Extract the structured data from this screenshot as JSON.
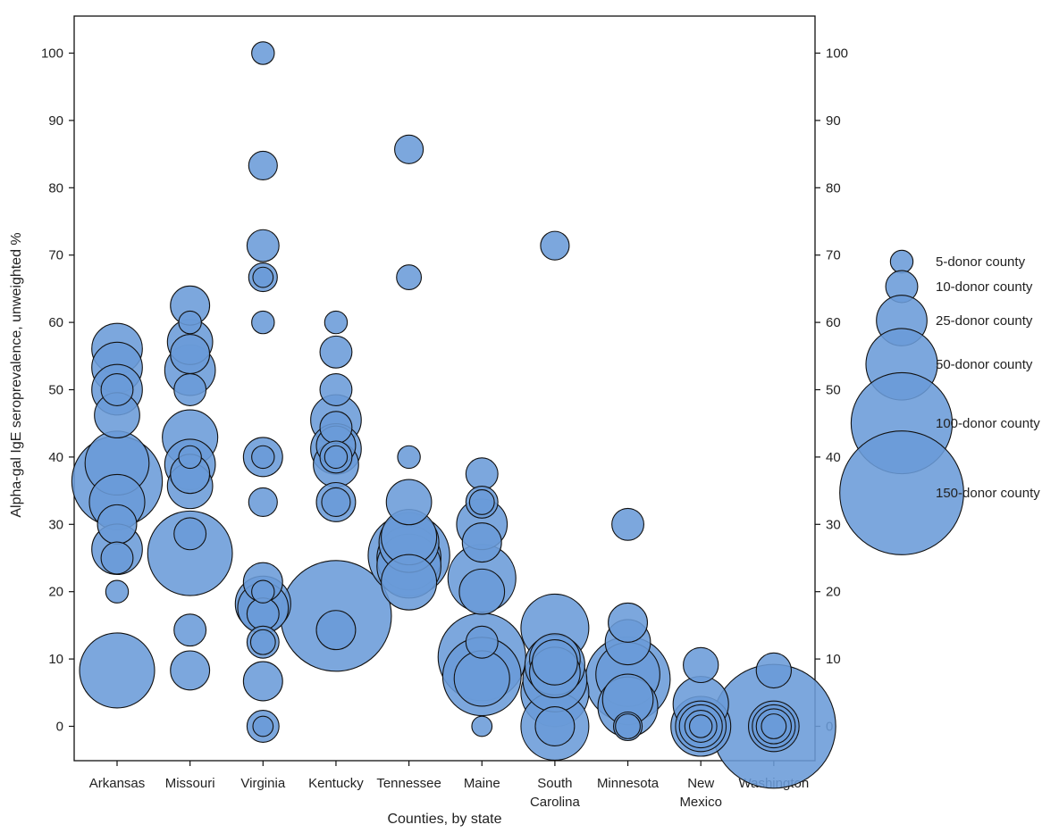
{
  "colors": {
    "bubble_fill": "#6a9bd8",
    "bubble_stroke": "#111111",
    "axis": "#111111"
  },
  "chart_data": {
    "type": "scatter",
    "title": "",
    "xlabel": "Counties, by state",
    "ylabel": "Alpha-gal IgE seroprevalence, unweighted %",
    "ylim": [
      -5,
      105
    ],
    "y_ticks": [
      0,
      10,
      20,
      30,
      40,
      50,
      60,
      70,
      80,
      90,
      100
    ],
    "y_tick_labels": [
      "0",
      "10",
      "20",
      "30",
      "40",
      "50",
      "60",
      "70",
      "80",
      "90",
      "100"
    ],
    "right_axis_mirrored": true,
    "grid": false,
    "legend_position": "right",
    "categories": [
      "Arkansas",
      "Missouri",
      "Virginia",
      "Kentucky",
      "Tennessee",
      "Maine",
      "South Carolina",
      "Minnesota",
      "New Mexico",
      "Washington"
    ],
    "category_labels": [
      [
        "Arkansas"
      ],
      [
        "Missouri"
      ],
      [
        "Virginia"
      ],
      [
        "Kentucky"
      ],
      [
        "Tennessee"
      ],
      [
        "Maine"
      ],
      [
        "South",
        "Carolina"
      ],
      [
        "Minnesota"
      ],
      [
        "New",
        "Mexico"
      ],
      [
        "Washington"
      ]
    ],
    "size_legend": [
      {
        "donors": 5,
        "label": "5-donor county"
      },
      {
        "donors": 10,
        "label": "10-donor county"
      },
      {
        "donors": 25,
        "label": "25-donor county"
      },
      {
        "donors": 50,
        "label": "50-donor county"
      },
      {
        "donors": 100,
        "label": "100-donor county"
      },
      {
        "donors": 150,
        "label": "150-donor county"
      }
    ],
    "points": [
      {
        "state": "Arkansas",
        "y": 56.1,
        "donors": 25
      },
      {
        "state": "Arkansas",
        "y": 53.3,
        "donors": 25
      },
      {
        "state": "Arkansas",
        "y": 50,
        "donors": 25
      },
      {
        "state": "Arkansas",
        "y": 50,
        "donors": 10
      },
      {
        "state": "Arkansas",
        "y": 46.2,
        "donors": 20
      },
      {
        "state": "Arkansas",
        "y": 39.1,
        "donors": 40
      },
      {
        "state": "Arkansas",
        "y": 36.4,
        "donors": 80
      },
      {
        "state": "Arkansas",
        "y": 33.3,
        "donors": 30
      },
      {
        "state": "Arkansas",
        "y": 30,
        "donors": 15
      },
      {
        "state": "Arkansas",
        "y": 26.3,
        "donors": 25
      },
      {
        "state": "Arkansas",
        "y": 25,
        "donors": 10
      },
      {
        "state": "Arkansas",
        "y": 20,
        "donors": 5
      },
      {
        "state": "Arkansas",
        "y": 8.3,
        "donors": 55
      },
      {
        "state": "Missouri",
        "y": 62.5,
        "donors": 15
      },
      {
        "state": "Missouri",
        "y": 60,
        "donors": 5
      },
      {
        "state": "Missouri",
        "y": 57.1,
        "donors": 20
      },
      {
        "state": "Missouri",
        "y": 55.3,
        "donors": 15
      },
      {
        "state": "Missouri",
        "y": 52.9,
        "donors": 25
      },
      {
        "state": "Missouri",
        "y": 50,
        "donors": 10
      },
      {
        "state": "Missouri",
        "y": 42.9,
        "donors": 30
      },
      {
        "state": "Missouri",
        "y": 40,
        "donors": 5
      },
      {
        "state": "Missouri",
        "y": 38.9,
        "donors": 25
      },
      {
        "state": "Missouri",
        "y": 37.5,
        "donors": 15
      },
      {
        "state": "Missouri",
        "y": 35.7,
        "donors": 20
      },
      {
        "state": "Missouri",
        "y": 28.6,
        "donors": 10
      },
      {
        "state": "Missouri",
        "y": 25.7,
        "donors": 70
      },
      {
        "state": "Missouri",
        "y": 14.3,
        "donors": 10
      },
      {
        "state": "Missouri",
        "y": 8.3,
        "donors": 15
      },
      {
        "state": "Virginia",
        "y": 100,
        "donors": 5
      },
      {
        "state": "Virginia",
        "y": 83.3,
        "donors": 8
      },
      {
        "state": "Virginia",
        "y": 71.4,
        "donors": 10
      },
      {
        "state": "Virginia",
        "y": 66.7,
        "donors": 8
      },
      {
        "state": "Virginia",
        "y": 66.7,
        "donors": 4
      },
      {
        "state": "Virginia",
        "y": 60,
        "donors": 5
      },
      {
        "state": "Virginia",
        "y": 40,
        "donors": 15
      },
      {
        "state": "Virginia",
        "y": 40,
        "donors": 5
      },
      {
        "state": "Virginia",
        "y": 33.3,
        "donors": 8
      },
      {
        "state": "Virginia",
        "y": 21.4,
        "donors": 15
      },
      {
        "state": "Virginia",
        "y": 20,
        "donors": 5
      },
      {
        "state": "Virginia",
        "y": 18.2,
        "donors": 30
      },
      {
        "state": "Virginia",
        "y": 17.6,
        "donors": 25
      },
      {
        "state": "Virginia",
        "y": 16.7,
        "donors": 10
      },
      {
        "state": "Virginia",
        "y": 12.5,
        "donors": 10
      },
      {
        "state": "Virginia",
        "y": 12.5,
        "donors": 6
      },
      {
        "state": "Virginia",
        "y": 6.7,
        "donors": 15
      },
      {
        "state": "Virginia",
        "y": 0,
        "donors": 10
      },
      {
        "state": "Virginia",
        "y": 0,
        "donors": 4
      },
      {
        "state": "Kentucky",
        "y": 60,
        "donors": 5
      },
      {
        "state": "Kentucky",
        "y": 55.6,
        "donors": 10
      },
      {
        "state": "Kentucky",
        "y": 50,
        "donors": 10
      },
      {
        "state": "Kentucky",
        "y": 45.5,
        "donors": 25
      },
      {
        "state": "Kentucky",
        "y": 44.4,
        "donors": 10
      },
      {
        "state": "Kentucky",
        "y": 41.7,
        "donors": 15
      },
      {
        "state": "Kentucky",
        "y": 41.2,
        "donors": 25
      },
      {
        "state": "Kentucky",
        "y": 40,
        "donors": 10
      },
      {
        "state": "Kentucky",
        "y": 40,
        "donors": 5
      },
      {
        "state": "Kentucky",
        "y": 38.9,
        "donors": 20
      },
      {
        "state": "Kentucky",
        "y": 33.3,
        "donors": 15
      },
      {
        "state": "Kentucky",
        "y": 33.3,
        "donors": 8
      },
      {
        "state": "Kentucky",
        "y": 16.4,
        "donors": 120
      },
      {
        "state": "Kentucky",
        "y": 14.3,
        "donors": 15
      },
      {
        "state": "Tennessee",
        "y": 85.7,
        "donors": 8
      },
      {
        "state": "Tennessee",
        "y": 66.7,
        "donors": 6
      },
      {
        "state": "Tennessee",
        "y": 40,
        "donors": 5
      },
      {
        "state": "Tennessee",
        "y": 33.3,
        "donors": 20
      },
      {
        "state": "Tennessee",
        "y": 28.1,
        "donors": 30
      },
      {
        "state": "Tennessee",
        "y": 27.3,
        "donors": 35
      },
      {
        "state": "Tennessee",
        "y": 25.4,
        "donors": 65
      },
      {
        "state": "Tennessee",
        "y": 25,
        "donors": 40
      },
      {
        "state": "Tennessee",
        "y": 23.8,
        "donors": 40
      },
      {
        "state": "Tennessee",
        "y": 21.4,
        "donors": 30
      },
      {
        "state": "Maine",
        "y": 37.5,
        "donors": 10
      },
      {
        "state": "Maine",
        "y": 33.3,
        "donors": 10
      },
      {
        "state": "Maine",
        "y": 33.3,
        "donors": 6
      },
      {
        "state": "Maine",
        "y": 30,
        "donors": 25
      },
      {
        "state": "Maine",
        "y": 27.3,
        "donors": 15
      },
      {
        "state": "Maine",
        "y": 22,
        "donors": 45
      },
      {
        "state": "Maine",
        "y": 20,
        "donors": 20
      },
      {
        "state": "Maine",
        "y": 12.5,
        "donors": 10
      },
      {
        "state": "Maine",
        "y": 10.3,
        "donors": 75
      },
      {
        "state": "Maine",
        "y": 7.4,
        "donors": 60
      },
      {
        "state": "Maine",
        "y": 7.1,
        "donors": 30
      },
      {
        "state": "Maine",
        "y": 0,
        "donors": 4
      },
      {
        "state": "South Carolina",
        "y": 71.4,
        "donors": 8
      },
      {
        "state": "South Carolina",
        "y": 14.6,
        "donors": 45
      },
      {
        "state": "South Carolina",
        "y": 10,
        "donors": 25
      },
      {
        "state": "South Carolina",
        "y": 9.5,
        "donors": 20
      },
      {
        "state": "South Carolina",
        "y": 9.1,
        "donors": 35
      },
      {
        "state": "South Carolina",
        "y": 8,
        "donors": 25
      },
      {
        "state": "South Carolina",
        "y": 6.9,
        "donors": 40
      },
      {
        "state": "South Carolina",
        "y": 5,
        "donors": 45
      },
      {
        "state": "South Carolina",
        "y": 0,
        "donors": 45
      },
      {
        "state": "South Carolina",
        "y": 0,
        "donors": 15
      },
      {
        "state": "Minnesota",
        "y": 30,
        "donors": 10
      },
      {
        "state": "Minnesota",
        "y": 15.4,
        "donors": 15
      },
      {
        "state": "Minnesota",
        "y": 12.5,
        "donors": 20
      },
      {
        "state": "Minnesota",
        "y": 7.7,
        "donors": 40
      },
      {
        "state": "Minnesota",
        "y": 7,
        "donors": 70
      },
      {
        "state": "Minnesota",
        "y": 4,
        "donors": 25
      },
      {
        "state": "Minnesota",
        "y": 2.9,
        "donors": 35
      },
      {
        "state": "Minnesota",
        "y": 0,
        "donors": 8
      },
      {
        "state": "Minnesota",
        "y": 0,
        "donors": 6
      },
      {
        "state": "New Mexico",
        "y": 9.1,
        "donors": 12
      },
      {
        "state": "New Mexico",
        "y": 3.3,
        "donors": 30
      },
      {
        "state": "New Mexico",
        "y": 0,
        "donors": 35
      },
      {
        "state": "New Mexico",
        "y": 0,
        "donors": 25
      },
      {
        "state": "New Mexico",
        "y": 0,
        "donors": 18
      },
      {
        "state": "New Mexico",
        "y": 0,
        "donors": 10
      },
      {
        "state": "New Mexico",
        "y": 0,
        "donors": 5
      },
      {
        "state": "Washington",
        "y": 8.3,
        "donors": 12
      },
      {
        "state": "Washington",
        "y": 0,
        "donors": 150
      },
      {
        "state": "Washington",
        "y": 0,
        "donors": 25
      },
      {
        "state": "Washington",
        "y": 0,
        "donors": 18
      },
      {
        "state": "Washington",
        "y": 0,
        "donors": 12
      },
      {
        "state": "Washington",
        "y": 0,
        "donors": 6
      }
    ]
  }
}
